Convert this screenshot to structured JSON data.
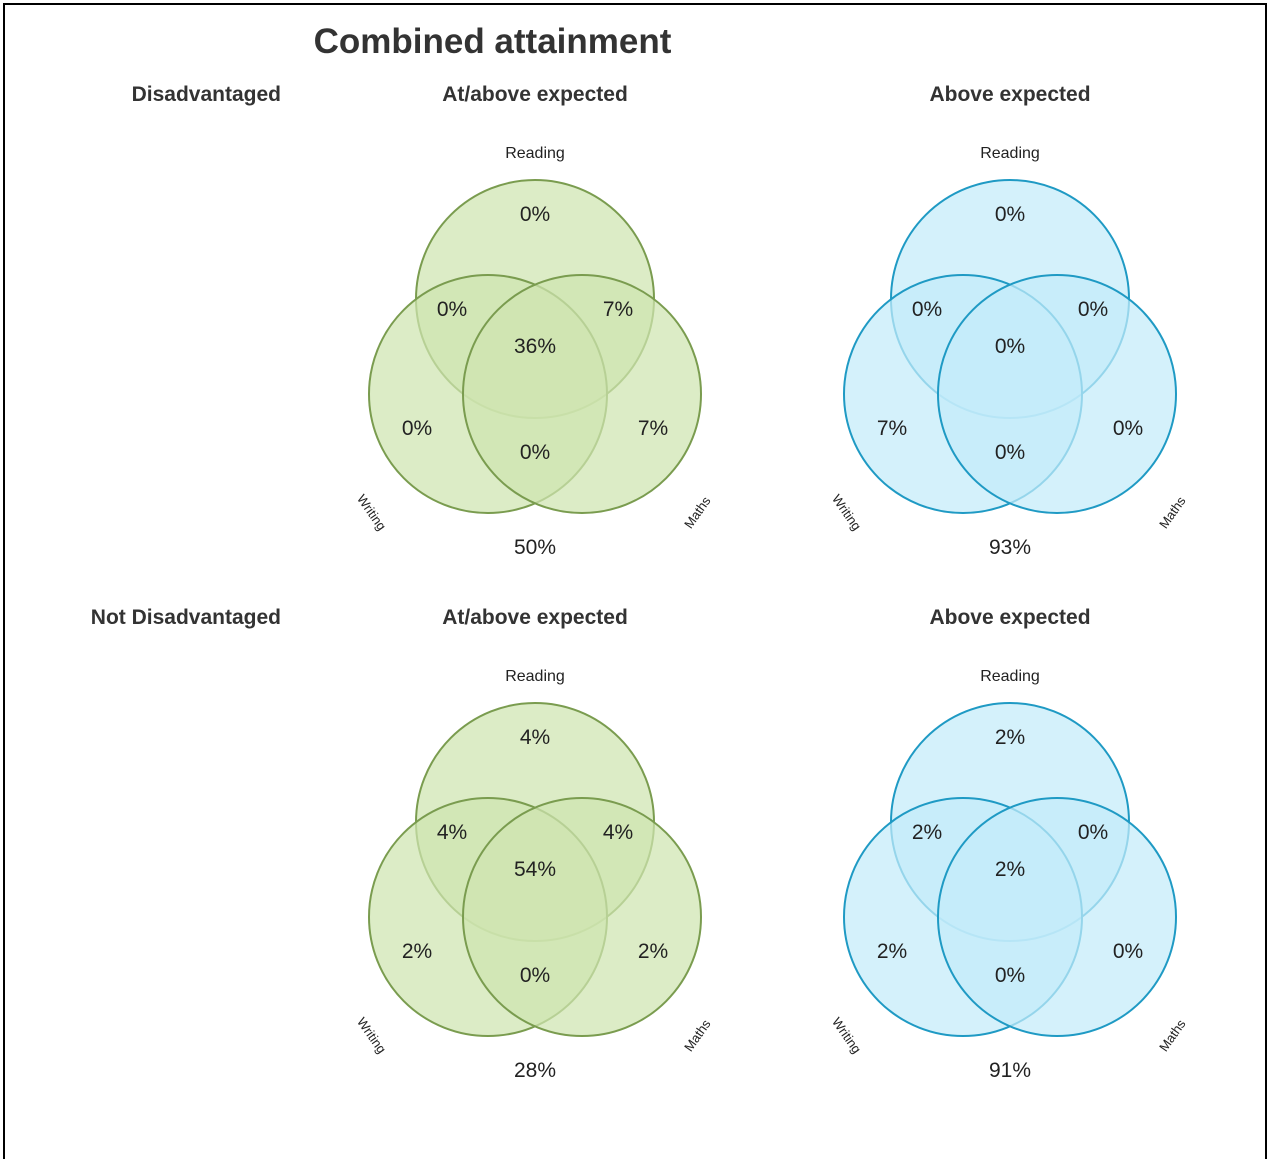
{
  "title": "Combined attainment",
  "set_labels": {
    "reading": "Reading",
    "writing": "Writing",
    "maths": "Maths"
  },
  "colors": {
    "green": {
      "fill": "#cfe5b0",
      "stroke": "#7a9c4f",
      "text": "#222222"
    },
    "blue": {
      "fill": "#c3ecfa",
      "stroke": "#1f9ac4",
      "text": "#222222"
    }
  },
  "groups": [
    {
      "label": "Disadvantaged",
      "charts": [
        {
          "title": "At/above expected",
          "theme": "green",
          "regions": {
            "reading_only": "0%",
            "writing_only": "0%",
            "maths_only": "7%",
            "reading_writing": "0%",
            "reading_maths": "7%",
            "writing_maths": "0%",
            "all_three": "36%",
            "outside": "50%"
          }
        },
        {
          "title": "Above expected",
          "theme": "blue",
          "regions": {
            "reading_only": "0%",
            "writing_only": "7%",
            "maths_only": "0%",
            "reading_writing": "0%",
            "reading_maths": "0%",
            "writing_maths": "0%",
            "all_three": "0%",
            "outside": "93%"
          }
        }
      ]
    },
    {
      "label": "Not Disadvantaged",
      "charts": [
        {
          "title": "At/above expected",
          "theme": "green",
          "regions": {
            "reading_only": "4%",
            "writing_only": "2%",
            "maths_only": "2%",
            "reading_writing": "4%",
            "reading_maths": "4%",
            "writing_maths": "0%",
            "all_three": "54%",
            "outside": "28%"
          }
        },
        {
          "title": "Above expected",
          "theme": "blue",
          "regions": {
            "reading_only": "2%",
            "writing_only": "2%",
            "maths_only": "0%",
            "reading_writing": "2%",
            "reading_maths": "0%",
            "writing_maths": "0%",
            "all_three": "2%",
            "outside": "91%"
          }
        }
      ]
    }
  ]
}
